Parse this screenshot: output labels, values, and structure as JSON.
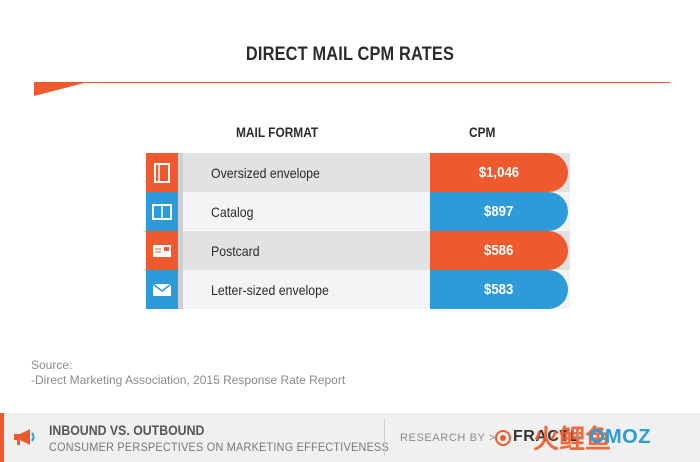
{
  "header": {
    "title": "DIRECT MAIL CPM RATES"
  },
  "table": {
    "col_format": "MAIL FORMAT",
    "col_cpm": "CPM"
  },
  "chart_data": {
    "type": "table",
    "title": "DIRECT MAIL CPM RATES",
    "columns": [
      "MAIL FORMAT",
      "CPM"
    ],
    "rows": [
      {
        "label": "Oversized envelope",
        "value": 1046,
        "display": "$1,046",
        "color": "#ee5a2d",
        "icon": "oversized-envelope-icon"
      },
      {
        "label": "Catalog",
        "value": 897,
        "display": "$897",
        "color": "#2d9bd9",
        "icon": "catalog-icon"
      },
      {
        "label": "Postcard",
        "value": 586,
        "display": "$586",
        "color": "#ee5a2d",
        "icon": "postcard-icon"
      },
      {
        "label": "Letter-sized envelope",
        "value": 583,
        "display": "$583",
        "color": "#2d9bd9",
        "icon": "envelope-icon"
      }
    ]
  },
  "source": {
    "heading": "Source:",
    "text": "-Direct Marketing Association, 2015 Response Rate Report"
  },
  "footer": {
    "title": "INBOUND VS. OUTBOUND",
    "subtitle": "CONSUMER PERSPECTIVES ON MARKETING EFFECTIVENESS",
    "research_by": "RESEARCH BY >",
    "fractl": "FRACTL",
    "plus": "+",
    "moz": "MOZ",
    "watermark": "火鲤鱼"
  },
  "colors": {
    "orange": "#ee5a2d",
    "blue": "#2d9bd9"
  }
}
